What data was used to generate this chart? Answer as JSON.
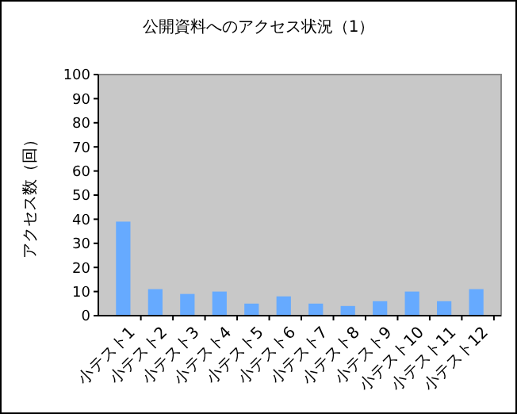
{
  "chart_data": {
    "type": "bar",
    "title": "公開資料へのアクセス状況（1）",
    "ylabel": "アクセス数（回）",
    "categories": [
      "小テスト1",
      "小テスト2",
      "小テスト3",
      "小テスト4",
      "小テスト5",
      "小テスト6",
      "小テスト7",
      "小テスト8",
      "小テスト9",
      "小テスト10",
      "小テスト11",
      "小テスト12"
    ],
    "values": [
      39,
      11,
      9,
      10,
      5,
      8,
      5,
      4,
      6,
      10,
      6,
      11
    ],
    "color": "#66aaff",
    "ylim": [
      0,
      100
    ],
    "yticks": [
      0,
      10,
      20,
      30,
      40,
      50,
      60,
      70,
      80,
      90,
      100
    ],
    "grid": false
  }
}
